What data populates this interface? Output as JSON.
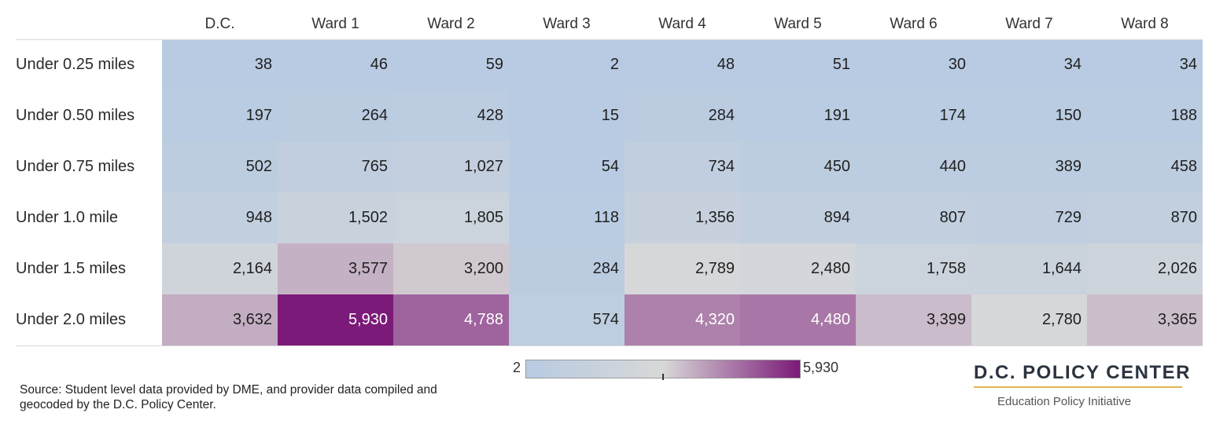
{
  "chart_data": {
    "type": "heatmap",
    "columns": [
      "D.C.",
      "Ward 1",
      "Ward 2",
      "Ward 3",
      "Ward 4",
      "Ward 5",
      "Ward 6",
      "Ward 7",
      "Ward 8"
    ],
    "rows": [
      "Under 0.25 miles",
      "Under 0.50 miles",
      "Under 0.75 miles",
      "Under 1.0 mile",
      "Under 1.5 miles",
      "Under 2.0 miles"
    ],
    "values": [
      [
        38,
        46,
        59,
        2,
        48,
        51,
        30,
        34,
        34
      ],
      [
        197,
        264,
        428,
        15,
        284,
        191,
        174,
        150,
        188
      ],
      [
        502,
        765,
        1027,
        54,
        734,
        450,
        440,
        389,
        458
      ],
      [
        948,
        1502,
        1805,
        118,
        1356,
        894,
        807,
        729,
        870
      ],
      [
        2164,
        3577,
        3200,
        284,
        2789,
        2480,
        1758,
        1644,
        2026
      ],
      [
        3632,
        5930,
        4788,
        574,
        4320,
        4480,
        3399,
        2780,
        3365
      ]
    ],
    "color_scale": {
      "min": 2,
      "max": 5930,
      "min_label": "2",
      "max_label": "5,930",
      "low_color": "#b8cbe2",
      "mid_color": "#d8d8d8",
      "high_color": "#7b1a78"
    }
  },
  "source_text": "Source: Student level data provided by DME, and provider data compiled and geocoded by the D.C. Policy Center.",
  "logo": {
    "title": "D.C. POLICY CENTER",
    "subtitle": "Education Policy Initiative",
    "accent_color": "#e2b84c"
  }
}
